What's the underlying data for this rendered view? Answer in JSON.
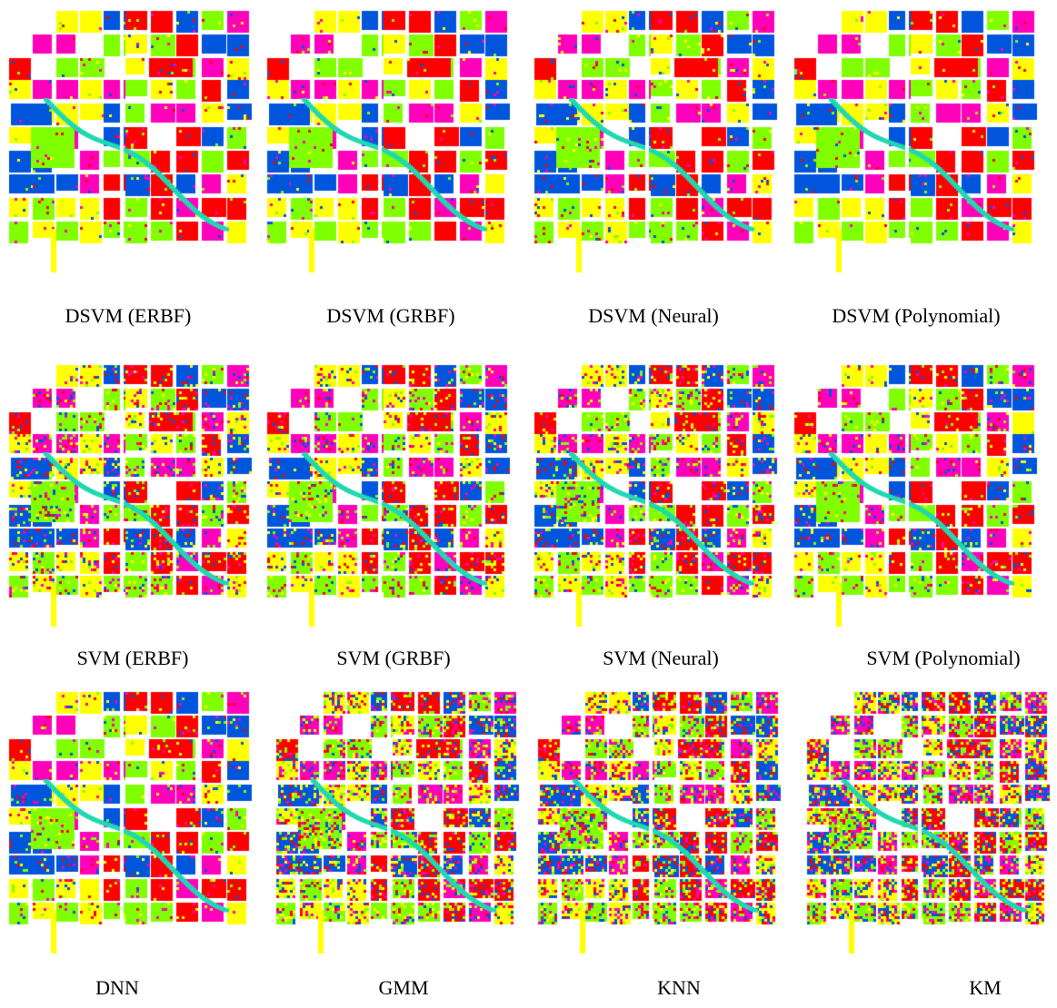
{
  "palette": {
    "red": "#ff0000",
    "green": "#80ff00",
    "blue": "#0055dd",
    "yellow": "#ffff00",
    "magenta": "#ff00bb",
    "cyan": "#20d8b0",
    "white": "#ffffff"
  },
  "panels": [
    {
      "caption": "DSVM (ERBF)",
      "noise": 0.05
    },
    {
      "caption": "DSVM (GRBF)",
      "noise": 0.05
    },
    {
      "caption": "DSVM (Neural)",
      "noise": 0.07
    },
    {
      "caption": "DSVM (Polynomial)",
      "noise": 0.04
    },
    {
      "caption": "SVM (ERBF)",
      "noise": 0.22
    },
    {
      "caption": "SVM (GRBF)",
      "noise": 0.22
    },
    {
      "caption": "SVM (Neural)",
      "noise": 0.24
    },
    {
      "caption": "SVM (Polynomial)",
      "noise": 0.14
    },
    {
      "caption": "DNN",
      "noise": 0.1
    },
    {
      "caption": "GMM",
      "noise": 0.42
    },
    {
      "caption": "KNN",
      "noise": 0.45
    },
    {
      "caption": "KM",
      "noise": 0.6
    }
  ]
}
